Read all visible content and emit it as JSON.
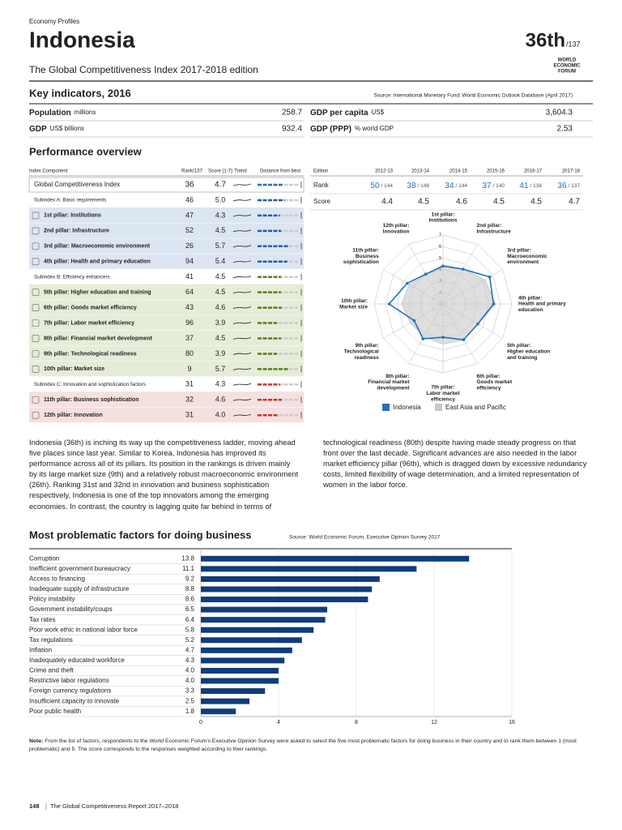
{
  "header": {
    "section": "Economy Profiles",
    "country": "Indonesia",
    "rank": "36th",
    "rank_of": "/137",
    "subtitle": "The Global Competitiveness Index 2017-2018 edition",
    "logo": [
      "WORLD",
      "ECONOMIC",
      "FORUM"
    ]
  },
  "key_indicators": {
    "title": "Key indicators, 2016",
    "source": "Source: International Monetary Fund; World Economic Outlook Database (April 2017)",
    "rows": [
      {
        "label": "Population",
        "unit": "millions",
        "value": "258.7"
      },
      {
        "label": "GDP",
        "unit": "US$ billions",
        "value": "932.4"
      },
      {
        "label": "GDP per capita",
        "unit": "US$",
        "value": "3,604.3"
      },
      {
        "label": "GDP (PPP)",
        "unit": "% world GDP",
        "value": "2.53"
      }
    ]
  },
  "performance": {
    "title": "Performance overview",
    "columns": [
      "Index Component",
      "Rank/137",
      "Score (1-7)",
      "Trend",
      "Distance from best"
    ],
    "gci": {
      "name": "Global Competitiveness Index",
      "rank": 36,
      "score": "4.7"
    },
    "subindexes": [
      {
        "name": "Subindex A: Basic requirements",
        "rank": 46,
        "score": "5.0",
        "color": "#1f5fa6",
        "background": "#dce6f2",
        "pillars": [
          {
            "name": "1st pillar: Institutions",
            "rank": 47,
            "score": "4.3"
          },
          {
            "name": "2nd pillar: Infrastructure",
            "rank": 52,
            "score": "4.5"
          },
          {
            "name": "3rd pillar: Macroeconomic environment",
            "rank": 26,
            "score": "5.7"
          },
          {
            "name": "4th pillar: Health and primary education",
            "rank": 94,
            "score": "5.4"
          }
        ]
      },
      {
        "name": "Subindex B: Efficiency enhancers",
        "rank": 41,
        "score": "4.5",
        "color": "#5d7f1e",
        "background": "#e5edd9",
        "pillars": [
          {
            "name": "5th pillar: Higher education and training",
            "rank": 64,
            "score": "4.5"
          },
          {
            "name": "6th pillar: Goods market efficiency",
            "rank": 43,
            "score": "4.6"
          },
          {
            "name": "7th pillar: Labor market efficiency",
            "rank": 96,
            "score": "3.9"
          },
          {
            "name": "8th pillar: Financial market development",
            "rank": 37,
            "score": "4.5"
          },
          {
            "name": "9th pillar: Technological readiness",
            "rank": 80,
            "score": "3.9"
          },
          {
            "name": "10th pillar: Market size",
            "rank": 9,
            "score": "5.7"
          }
        ]
      },
      {
        "name": "Subindex C: Innovation and sophistication factors",
        "rank": 31,
        "score": "4.3",
        "color": "#c0392b",
        "background": "#f5e0e0",
        "pillars": [
          {
            "name": "11th pillar: Business sophistication",
            "rank": 32,
            "score": "4.6"
          },
          {
            "name": "12th pillar: Innovation",
            "rank": 31,
            "score": "4.0"
          }
        ]
      }
    ]
  },
  "history": {
    "label": "Edition",
    "years": [
      "2012-13",
      "2013-14",
      "2014-15",
      "2015-16",
      "2016-17",
      "2017-18"
    ],
    "rank_label": "Rank",
    "ranks": [
      {
        "rank": 50,
        "of": "/ 144"
      },
      {
        "rank": 38,
        "of": "/ 148"
      },
      {
        "rank": 34,
        "of": "/ 144"
      },
      {
        "rank": 37,
        "of": "/ 140"
      },
      {
        "rank": 41,
        "of": "/ 138"
      },
      {
        "rank": 36,
        "of": "/ 137"
      }
    ],
    "score_label": "Score",
    "scores": [
      4.4,
      4.5,
      4.6,
      4.5,
      4.5,
      4.7
    ]
  },
  "radar": {
    "type": "radar",
    "rlim": [
      1,
      7
    ],
    "rticks": [
      1,
      2,
      3,
      4,
      5,
      6,
      7
    ],
    "axes": [
      {
        "lines": [
          "1st pillar:",
          "Institutions"
        ],
        "color": "#1f5fa6"
      },
      {
        "lines": [
          "2nd pillar:",
          "Infrastructure"
        ],
        "color": "#1f5fa6"
      },
      {
        "lines": [
          "3rd pillar:",
          "Macroeconomic",
          "environment"
        ],
        "color": "#1f5fa6"
      },
      {
        "lines": [
          "4th pillar:",
          "Health and primary",
          "education"
        ],
        "color": "#1f5fa6"
      },
      {
        "lines": [
          "5th pillar:",
          "Higher education",
          "and training"
        ],
        "color": "#4f6b16"
      },
      {
        "lines": [
          "6th pillar:",
          "Goods market",
          "efficiency"
        ],
        "color": "#4f6b16"
      },
      {
        "lines": [
          "7th pillar:",
          "Labor market",
          "efficiency"
        ],
        "color": "#4f6b16"
      },
      {
        "lines": [
          "8th pillar:",
          "Financial market",
          "development"
        ],
        "color": "#4f6b16"
      },
      {
        "lines": [
          "9th pillar:",
          "Technological",
          "readiness"
        ],
        "color": "#4f6b16"
      },
      {
        "lines": [
          "10th pillar:",
          "Market size"
        ],
        "color": "#4f6b16"
      },
      {
        "lines": [
          "11th pillar:",
          "Business",
          "sophistication"
        ],
        "color": "#c0392b"
      },
      {
        "lines": [
          "12th pillar:",
          "Innovation"
        ],
        "color": "#c0392b"
      }
    ],
    "series": [
      {
        "name": "Indonesia",
        "color": "#2a6ebb",
        "values": [
          4.3,
          4.5,
          5.7,
          5.4,
          4.5,
          4.6,
          3.9,
          4.5,
          3.9,
          5.7,
          4.6,
          4.0
        ]
      },
      {
        "name": "East Asia and Pacific",
        "color": "#c8c8c8",
        "values": [
          4.4,
          4.5,
          5.2,
          5.6,
          4.5,
          4.6,
          4.5,
          4.3,
          4.3,
          4.6,
          4.4,
          3.9
        ]
      }
    ]
  },
  "summary": "Indonesia (36th) is inching its way up the competitiveness ladder, moving ahead five places since last year. Similar to Korea, Indonesia has improved its performance across all of its pillars. Its position in the rankings is driven mainly by its large market size (9th) and a relatively robust macroeconomic environment (26th). Ranking 31st and 32nd in innovation and business sophistication respectively, Indonesia is one of the top innovators among the emerging economies. In contrast, the country is lagging quite far behind in terms of technological readiness (80th) despite having made steady progress on that front over the last decade. Significant advances are also needed in the labor market efficiency pillar (96th), which is dragged down by excessive redundancy costs, limited flexibility of wage determination, and a limited representation of women in the labor force.",
  "factors": {
    "type": "bar",
    "title": "Most problematic factors for doing business",
    "source": "Source: World Economic Forum, Executive Opinion Survey 2017",
    "categories": [
      "Corruption",
      "Inefficient government bureaucracy",
      "Access to financing",
      "Inadequate supply of infrastructure",
      "Policy instability",
      "Government instability/coups",
      "Tax rates",
      "Poor work ethic in national labor force",
      "Tax regulations",
      "Inflation",
      "Inadequately educated workforce",
      "Crime and theft",
      "Restrictive labor regulations",
      "Foreign currency regulations",
      "Insufficient capacity to innovate",
      "Poor public health"
    ],
    "values": [
      13.8,
      11.1,
      9.2,
      8.8,
      8.6,
      6.5,
      6.4,
      5.8,
      5.2,
      4.7,
      4.3,
      4.0,
      4.0,
      3.3,
      2.5,
      1.8
    ],
    "value_labels": [
      "13.8",
      "11.1",
      "9.2",
      "8.8",
      "8.6",
      "6.5",
      "6.4",
      "5.8",
      "5.2",
      "4.7",
      "4.3",
      "4.0",
      "4.0",
      "3.3",
      "2.5",
      "1.8"
    ],
    "color": "#0f3d7a",
    "xlim": [
      0,
      16
    ],
    "xticks": [
      0,
      4,
      8,
      12,
      16
    ],
    "grid": true
  },
  "note": {
    "label": "Note:",
    "text": "From the list of factors, respondents to the World Economic Forum's Executive Opinion Survey were asked to select the five most problematic factors for doing business in their country and to rank them between 1 (most problematic) and 5. The score corresponds to the responses weighted according to their rankings."
  },
  "footer": {
    "page": "148",
    "title": "The Global Competitiveness Report 2017–2018"
  }
}
